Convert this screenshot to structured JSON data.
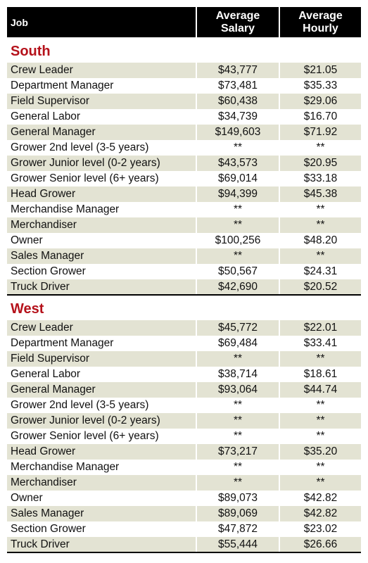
{
  "header": {
    "job": "Job",
    "salary": "Average\nSalary",
    "hourly": "Average\nHourly"
  },
  "regions": [
    {
      "name": "South",
      "rows": [
        {
          "job": "Crew Leader",
          "salary": "$43,777",
          "hourly": "$21.05"
        },
        {
          "job": "Department Manager",
          "salary": "$73,481",
          "hourly": "$35.33"
        },
        {
          "job": "Field Supervisor",
          "salary": "$60,438",
          "hourly": "$29.06"
        },
        {
          "job": "General Labor",
          "salary": "$34,739",
          "hourly": "$16.70"
        },
        {
          "job": "General Manager",
          "salary": "$149,603",
          "hourly": "$71.92"
        },
        {
          "job": "Grower 2nd level (3-5 years)",
          "salary": "**",
          "hourly": "**"
        },
        {
          "job": "Grower Junior level (0-2 years)",
          "salary": "$43,573",
          "hourly": "$20.95"
        },
        {
          "job": "Grower Senior level (6+ years)",
          "salary": "$69,014",
          "hourly": "$33.18"
        },
        {
          "job": "Head Grower",
          "salary": "$94,399",
          "hourly": "$45.38"
        },
        {
          "job": "Merchandise Manager",
          "salary": "**",
          "hourly": "**"
        },
        {
          "job": "Merchandiser",
          "salary": "**",
          "hourly": "**"
        },
        {
          "job": "Owner",
          "salary": "$100,256",
          "hourly": "$48.20"
        },
        {
          "job": "Sales Manager",
          "salary": "**",
          "hourly": "**"
        },
        {
          "job": "Section Grower",
          "salary": "$50,567",
          "hourly": "$24.31"
        },
        {
          "job": "Truck Driver",
          "salary": "$42,690",
          "hourly": "$20.52"
        }
      ]
    },
    {
      "name": "West",
      "rows": [
        {
          "job": "Crew Leader",
          "salary": "$45,772",
          "hourly": "$22.01"
        },
        {
          "job": "Department Manager",
          "salary": "$69,484",
          "hourly": "$33.41"
        },
        {
          "job": "Field Supervisor",
          "salary": "**",
          "hourly": "**"
        },
        {
          "job": "General Labor",
          "salary": "$38,714",
          "hourly": "$18.61"
        },
        {
          "job": "General Manager",
          "salary": "$93,064",
          "hourly": "$44.74"
        },
        {
          "job": "Grower 2nd level (3-5 years)",
          "salary": "**",
          "hourly": "**"
        },
        {
          "job": "Grower Junior level (0-2 years)",
          "salary": "**",
          "hourly": "**"
        },
        {
          "job": "Grower Senior level (6+ years)",
          "salary": "**",
          "hourly": "**"
        },
        {
          "job": "Head Grower",
          "salary": "$73,217",
          "hourly": "$35.20"
        },
        {
          "job": "Merchandise Manager",
          "salary": "**",
          "hourly": "**"
        },
        {
          "job": "Merchandiser",
          "salary": "**",
          "hourly": "**"
        },
        {
          "job": "Owner",
          "salary": "$89,073",
          "hourly": "$42.82"
        },
        {
          "job": "Sales Manager",
          "salary": "$89,069",
          "hourly": "$42.82"
        },
        {
          "job": "Section Grower",
          "salary": "$47,872",
          "hourly": "$23.02"
        },
        {
          "job": "Truck Driver",
          "salary": "$55,444",
          "hourly": "$26.66"
        }
      ]
    }
  ],
  "colors": {
    "header_bg": "#000000",
    "region_text": "#b5121b",
    "shade": "#e3e3d3"
  }
}
